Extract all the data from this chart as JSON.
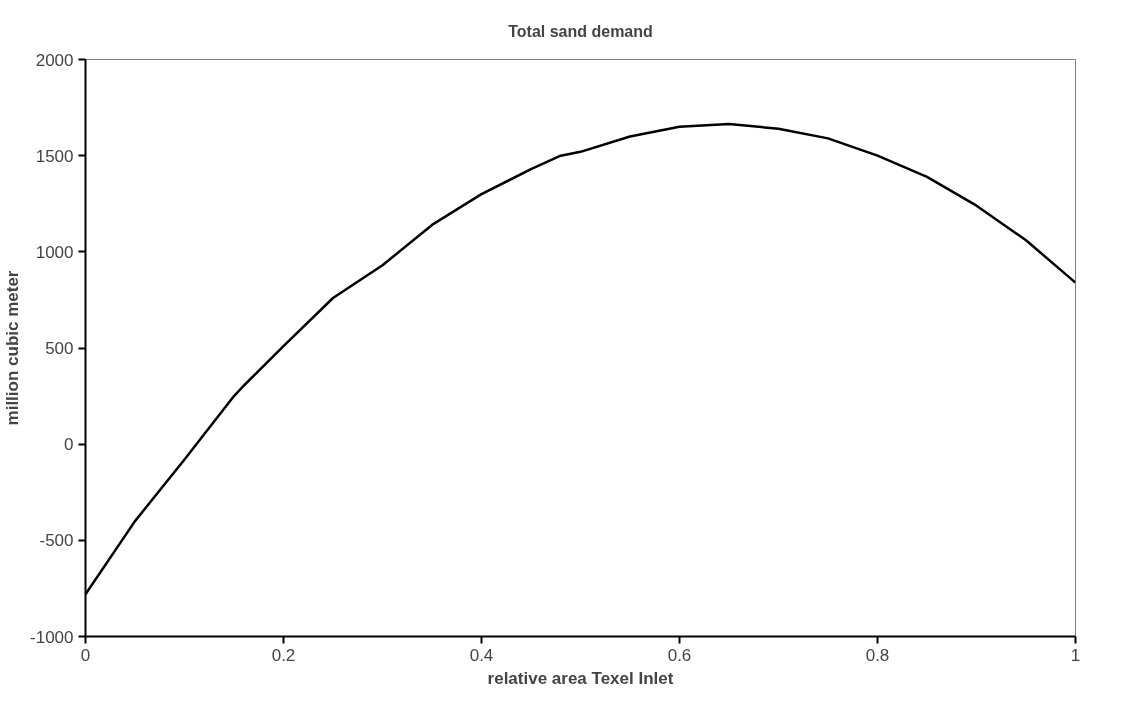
{
  "chart_data": {
    "type": "line",
    "title": "Total sand demand",
    "xlabel": "relative area Texel Inlet",
    "ylabel": "million cubic meter",
    "x": [
      0,
      0.05,
      0.1,
      0.15,
      0.16,
      0.2,
      0.25,
      0.3,
      0.35,
      0.4,
      0.45,
      0.48,
      0.5,
      0.55,
      0.6,
      0.65,
      0.7,
      0.75,
      0.8,
      0.85,
      0.9,
      0.95,
      1
    ],
    "series": [
      {
        "color": "#000000",
        "values": [
          -780,
          -400,
          -80,
          250,
          305,
          510,
          760,
          930,
          1140,
          1300,
          1430,
          1500,
          1520,
          1600,
          1650,
          1665,
          1640,
          1590,
          1500,
          1390,
          1240,
          1060,
          840
        ]
      }
    ],
    "xlim": [
      0,
      1
    ],
    "xticks": [
      0,
      0.2,
      0.4,
      0.6,
      0.8,
      1
    ],
    "ylim": [
      -1000,
      2000
    ],
    "yticks": [
      -1000,
      -500,
      0,
      500,
      1000,
      1500,
      2000
    ],
    "grid": false,
    "line_style": "solid"
  }
}
